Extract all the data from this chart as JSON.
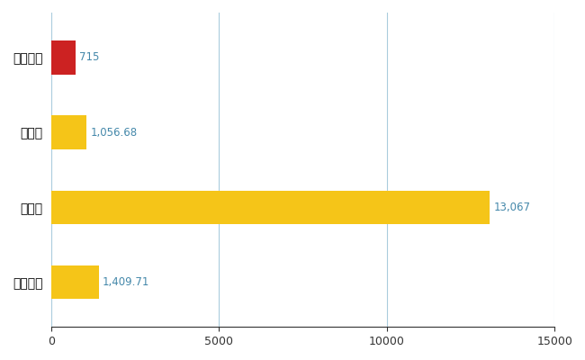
{
  "categories": [
    "多賀城市",
    "県平均",
    "県最大",
    "全国平均"
  ],
  "values": [
    715,
    1056.68,
    13067,
    1409.71
  ],
  "bar_colors": [
    "#cc2222",
    "#f5c518",
    "#f5c518",
    "#f5c518"
  ],
  "labels": [
    "715",
    "1,056.68",
    "13,067",
    "1,409.71"
  ],
  "xlim": [
    0,
    15000
  ],
  "xticks": [
    0,
    5000,
    10000,
    15000
  ],
  "xtick_labels": [
    "0",
    "5000",
    "10000",
    "15000"
  ],
  "background_color": "#ffffff",
  "grid_color": "#aaccdd",
  "bar_height": 0.45,
  "label_color": "#4488aa",
  "figsize": [
    6.5,
    4.0
  ],
  "dpi": 100
}
